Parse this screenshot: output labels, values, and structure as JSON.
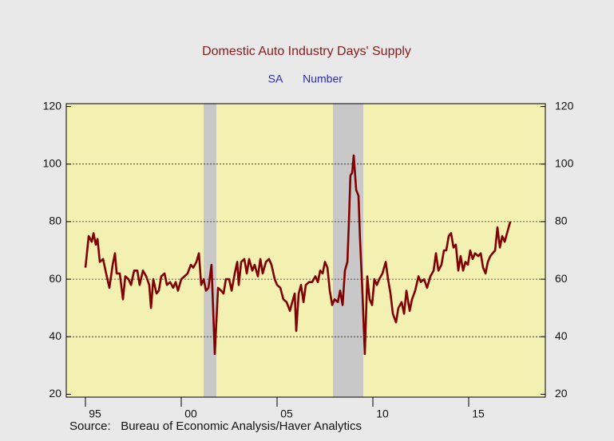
{
  "chart_data": {
    "type": "line",
    "title": "Domestic Auto Industry Days' Supply",
    "subtitle": [
      "SA",
      "Number"
    ],
    "source": "Source:   Bureau of Economic Analysis/Haver Analytics",
    "color": "#800000",
    "background": "#f3f1b1",
    "shade_color": "#c8c8c8",
    "shaded_ranges": [
      [
        2001.17,
        2001.83
      ],
      [
        2007.92,
        2009.5
      ]
    ],
    "xlim": [
      1994,
      2019
    ],
    "xticks": [
      {
        "value": 1995,
        "label": "95"
      },
      {
        "value": 2000,
        "label": "00"
      },
      {
        "value": 2005,
        "label": "05"
      },
      {
        "value": 2010,
        "label": "10"
      },
      {
        "value": 2015,
        "label": "15"
      }
    ],
    "ylim": [
      19,
      121
    ],
    "yticks": [
      20,
      40,
      60,
      80,
      100,
      120
    ],
    "y2lim": [
      19,
      121
    ],
    "y2ticks": [
      20,
      40,
      60,
      80,
      100,
      120
    ],
    "grid": true,
    "x": [
      1995.0,
      1995.17,
      1995.33,
      1995.42,
      1995.54,
      1995.63,
      1995.75,
      1995.92,
      1996.08,
      1996.25,
      1996.42,
      1996.54,
      1996.63,
      1996.79,
      1996.96,
      1997.08,
      1997.25,
      1997.38,
      1997.54,
      1997.71,
      1997.83,
      1998.0,
      1998.17,
      1998.33,
      1998.42,
      1998.54,
      1998.71,
      1998.83,
      1998.96,
      1999.13,
      1999.25,
      1999.42,
      1999.58,
      1999.71,
      1999.83,
      2000.0,
      2000.17,
      2000.33,
      2000.5,
      2000.63,
      2000.79,
      2000.92,
      2001.04,
      2001.17,
      2001.29,
      2001.42,
      2001.58,
      2001.75,
      2001.92,
      2002.08,
      2002.21,
      2002.33,
      2002.5,
      2002.63,
      2002.79,
      2002.92,
      2003.0,
      2003.13,
      2003.29,
      2003.42,
      2003.54,
      2003.71,
      2003.83,
      2004.0,
      2004.13,
      2004.25,
      2004.42,
      2004.58,
      2004.71,
      2004.88,
      2005.0,
      2005.17,
      2005.33,
      2005.5,
      2005.67,
      2005.79,
      2005.92,
      2006.0,
      2006.13,
      2006.25,
      2006.38,
      2006.5,
      2006.67,
      2006.83,
      2007.0,
      2007.13,
      2007.25,
      2007.38,
      2007.5,
      2007.63,
      2007.75,
      2007.88,
      2008.0,
      2008.17,
      2008.29,
      2008.42,
      2008.54,
      2008.67,
      2008.75,
      2008.83,
      2008.92,
      2009.0,
      2009.13,
      2009.25,
      2009.33,
      2009.46,
      2009.58,
      2009.71,
      2009.83,
      2009.96,
      2010.08,
      2010.21,
      2010.33,
      2010.5,
      2010.67,
      2010.79,
      2010.92,
      2011.04,
      2011.21,
      2011.33,
      2011.5,
      2011.63,
      2011.75,
      2011.92,
      2012.04,
      2012.21,
      2012.38,
      2012.5,
      2012.67,
      2012.83,
      2013.0,
      2013.17,
      2013.29,
      2013.42,
      2013.58,
      2013.71,
      2013.83,
      2013.96,
      2014.08,
      2014.21,
      2014.33,
      2014.46,
      2014.58,
      2014.71,
      2014.83,
      2014.96,
      2015.08,
      2015.21,
      2015.33,
      2015.5,
      2015.63,
      2015.75,
      2015.88,
      2016.0,
      2016.13,
      2016.25,
      2016.38,
      2016.5,
      2016.63,
      2016.75,
      2016.88,
      2017.0,
      2017.17
    ],
    "values": [
      64,
      75,
      73,
      76,
      72,
      74,
      66,
      67,
      62,
      57,
      65,
      69,
      62,
      62,
      53,
      61,
      60,
      58,
      63,
      63,
      58,
      63,
      61,
      58,
      50,
      60,
      55,
      56,
      61,
      62,
      58,
      59,
      57,
      59,
      56,
      60,
      61,
      62,
      65,
      64,
      66,
      69,
      58,
      60,
      56,
      57,
      65,
      34,
      57,
      56,
      55,
      60,
      60,
      56,
      62,
      66,
      58,
      66,
      67,
      62,
      67,
      63,
      65,
      61,
      67,
      62,
      66,
      67,
      65,
      60,
      58,
      57,
      53,
      52,
      49,
      52,
      55,
      42,
      55,
      58,
      52,
      58,
      59,
      59,
      61,
      59,
      63,
      62,
      66,
      64,
      56,
      51,
      53,
      52,
      56,
      51,
      63,
      66,
      80,
      96,
      97,
      103,
      91,
      89,
      74,
      55,
      34,
      61,
      53,
      51,
      60,
      58,
      60,
      62,
      66,
      60,
      55,
      48,
      45,
      50,
      52,
      48,
      56,
      49,
      53,
      56,
      61,
      59,
      60,
      57,
      61,
      63,
      69,
      63,
      65,
      70,
      70,
      75,
      76,
      71,
      72,
      63,
      68,
      63,
      66,
      65,
      70,
      67,
      69,
      68,
      69,
      64,
      62,
      66,
      68,
      69,
      70,
      78,
      71,
      75,
      73,
      76,
      80
    ]
  }
}
